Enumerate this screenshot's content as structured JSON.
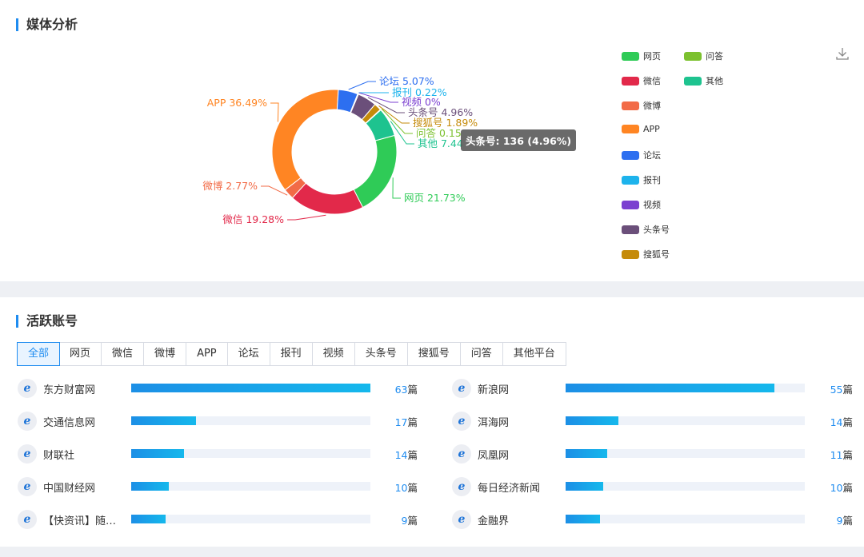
{
  "media_section": {
    "title": "媒体分析",
    "tooltip": "头条号: 136 (4.96%)",
    "download_icon": "download-icon"
  },
  "chart_data": {
    "type": "pie",
    "donut": true,
    "slices": [
      {
        "name": "网页",
        "value": 21.73,
        "label": "网页 21.73%",
        "color": "#2fcb57"
      },
      {
        "name": "微信",
        "value": 19.28,
        "label": "微信 19.28%",
        "color": "#e2294a"
      },
      {
        "name": "微博",
        "value": 2.77,
        "label": "微博 2.77%",
        "color": "#f26b47"
      },
      {
        "name": "APP",
        "value": 36.49,
        "label": "APP 36.49%",
        "color": "#ff8523"
      },
      {
        "name": "论坛",
        "value": 5.07,
        "label": "论坛 5.07%",
        "color": "#2d6ff0"
      },
      {
        "name": "报刊",
        "value": 0.22,
        "label": "报刊 0.22%",
        "color": "#1db3ec"
      },
      {
        "name": "视频",
        "value": 0,
        "label": "视频 0%",
        "color": "#7b3fd0"
      },
      {
        "name": "头条号",
        "value": 4.96,
        "label": "头条号 4.96%",
        "color": "#6b4f7a"
      },
      {
        "name": "搜狐号",
        "value": 1.89,
        "label": "搜狐号 1.89%",
        "color": "#c58b0a"
      },
      {
        "name": "问答",
        "value": 0.15,
        "label": "问答 0.15",
        "color": "#7cc12f"
      },
      {
        "name": "其他",
        "value": 7.44,
        "label": "其他 7.44",
        "color": "#1ec38f"
      }
    ],
    "legend_position": "right"
  },
  "legend": [
    {
      "label": "网页",
      "color": "#2fcb57"
    },
    {
      "label": "问答",
      "color": "#7cc12f"
    },
    {
      "label": "微信",
      "color": "#e2294a"
    },
    {
      "label": "其他",
      "color": "#1ec38f"
    },
    {
      "label": "微博",
      "color": "#f26b47"
    },
    {
      "label": "APP",
      "color": "#ff8523"
    },
    {
      "label": "论坛",
      "color": "#2d6ff0"
    },
    {
      "label": "报刊",
      "color": "#1db3ec"
    },
    {
      "label": "视频",
      "color": "#7b3fd0"
    },
    {
      "label": "头条号",
      "color": "#6b4f7a"
    },
    {
      "label": "搜狐号",
      "color": "#c58b0a"
    }
  ],
  "accounts_section": {
    "title": "活跃账号",
    "tabs": [
      "全部",
      "网页",
      "微信",
      "微博",
      "APP",
      "论坛",
      "报刊",
      "视频",
      "头条号",
      "搜狐号",
      "问答",
      "其他平台"
    ],
    "active_tab": 0,
    "unit": "篇",
    "left": [
      {
        "name": "东方财富网",
        "count": 63,
        "count_text": "63"
      },
      {
        "name": "交通信息网",
        "count": 17,
        "count_text": "17"
      },
      {
        "name": "财联社",
        "count": 14,
        "count_text": "14"
      },
      {
        "name": "中国财经网",
        "count": 10,
        "count_text": "10"
      },
      {
        "name": "【快资讯】随…",
        "count": 9,
        "count_text": "9"
      }
    ],
    "right": [
      {
        "name": "新浪网",
        "count": 55,
        "count_text": "55"
      },
      {
        "name": "洱海网",
        "count": 14,
        "count_text": "14"
      },
      {
        "name": "凤凰网",
        "count": 11,
        "count_text": "11"
      },
      {
        "name": "每日经济新闻",
        "count": 10,
        "count_text": "10"
      },
      {
        "name": "金融界",
        "count": 9,
        "count_text": "9"
      }
    ],
    "bar_max": 63,
    "site_icon": "ie-browser-icon"
  }
}
